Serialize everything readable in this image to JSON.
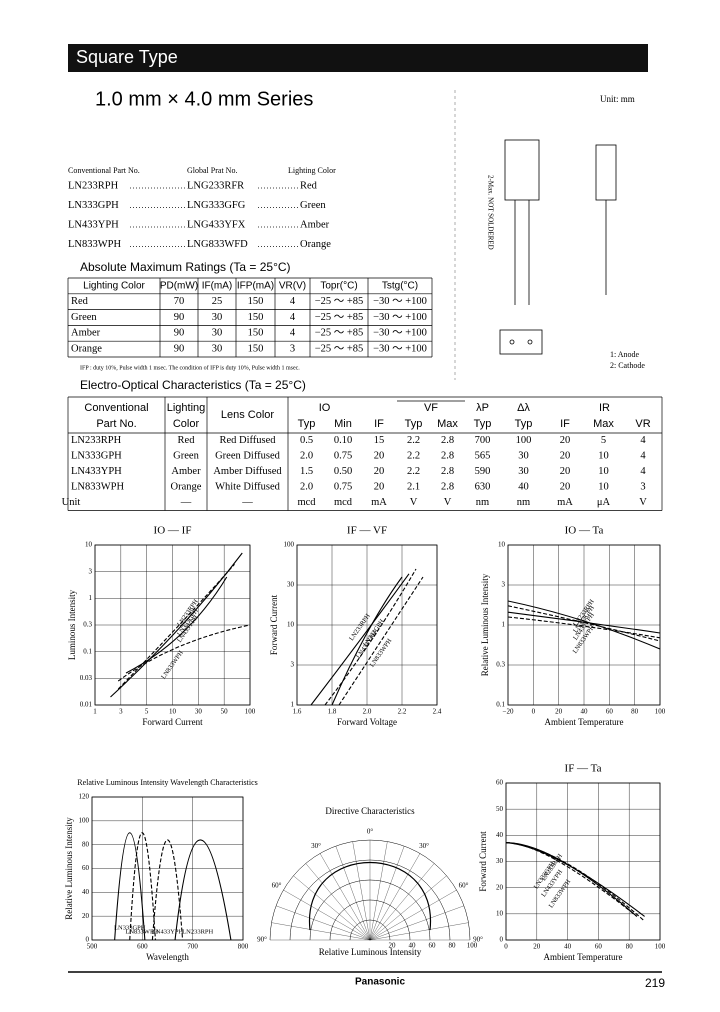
{
  "header": {
    "title": "Square Type"
  },
  "series_title": "1.0 mm × 4.0 mm Series",
  "drawing": {
    "unit": "Unit: mm",
    "not_soldered": "2-Max. NOT SOLDERED",
    "pin1": "1: Anode",
    "pin2": "2: Cathode"
  },
  "parts": {
    "headers": [
      "Conventional Part No.",
      "Global Prat No.",
      "Lighting Color"
    ],
    "rows": [
      [
        "LN233RPH",
        "LNG233RFR",
        "Red"
      ],
      [
        "LN333GPH",
        "LNG333GFG",
        "Green"
      ],
      [
        "LN433YPH",
        "LNG433YFX",
        "Amber"
      ],
      [
        "LN833WPH",
        "LNG833WFD",
        "Orange"
      ]
    ]
  },
  "abs_max": {
    "title": "Absolute Maximum Ratings (Ta = 25°C)",
    "headers": [
      "Lighting Color",
      "PD(mW)",
      "IF(mA)",
      "IFP(mA)",
      "VR(V)",
      "Topr(°C)",
      "Tstg(°C)"
    ],
    "rows": [
      [
        "Red",
        "70",
        "25",
        "150",
        "4",
        "−25 ～ +85",
        "−30 ～ +100"
      ],
      [
        "Green",
        "90",
        "30",
        "150",
        "4",
        "−25 ～ +85",
        "−30 ～ +100"
      ],
      [
        "Amber",
        "90",
        "30",
        "150",
        "4",
        "−25 ～ +85",
        "−30 ～ +100"
      ],
      [
        "Orange",
        "90",
        "30",
        "150",
        "3",
        "−25 ～ +85",
        "−30 ～ +100"
      ]
    ],
    "note": "IFP : duty 10%, Pulse width 1 msec. The condition of IFP is duty 10%, Pulse width 1 msec."
  },
  "electro": {
    "title": "Electro-Optical Characteristics (Ta = 25°C)",
    "header1": [
      "Conventional",
      "Lighting",
      "Lens Color",
      "IO",
      "VF",
      "λP",
      "Δλ",
      "IR"
    ],
    "header2": [
      "Part No.",
      "Color",
      "Typ",
      "Min",
      "IF",
      "Typ",
      "Max",
      "Typ",
      "Typ",
      "IF",
      "Max",
      "VR"
    ],
    "rows": [
      [
        "LN233RPH",
        "Red",
        "Red Diffused",
        "0.5",
        "0.10",
        "15",
        "2.2",
        "2.8",
        "700",
        "100",
        "20",
        "5",
        "4"
      ],
      [
        "LN333GPH",
        "Green",
        "Green Diffused",
        "2.0",
        "0.75",
        "20",
        "2.2",
        "2.8",
        "565",
        "30",
        "20",
        "10",
        "4"
      ],
      [
        "LN433YPH",
        "Amber",
        "Amber Diffused",
        "1.5",
        "0.50",
        "20",
        "2.2",
        "2.8",
        "590",
        "30",
        "20",
        "10",
        "4"
      ],
      [
        "LN833WPH",
        "Orange",
        "White Diffused",
        "2.0",
        "0.75",
        "20",
        "2.1",
        "2.8",
        "630",
        "40",
        "20",
        "10",
        "3"
      ],
      [
        "Unit",
        "—",
        "—",
        "mcd",
        "mcd",
        "mA",
        "V",
        "V",
        "nm",
        "nm",
        "mA",
        "μA",
        "V"
      ]
    ]
  },
  "charts": [
    {
      "title": "IO — IF",
      "xlabel": "Forward Current",
      "ylabel": "Luminous Intensity",
      "xticks": [
        "1",
        "3",
        "5",
        "10",
        "30",
        "50",
        "100"
      ],
      "yticks": [
        "0.01",
        "0.03",
        "0.1",
        "0.3",
        "1",
        "3",
        "10"
      ],
      "curves": [
        "LN233RPH",
        "LN333GPH",
        "LN433YPH",
        "LN833WPH"
      ]
    },
    {
      "title": "IF — VF",
      "xlabel": "Forward Voltage",
      "ylabel": "Forward Current",
      "xticks": [
        "1.6",
        "1.8",
        "2.0",
        "2.2",
        "2.4"
      ],
      "yticks": [
        "1",
        "3",
        "10",
        "30",
        "100"
      ],
      "curves": [
        "LN233RPH",
        "LN333GPH",
        "LN433YPH",
        "LN833WPH"
      ]
    },
    {
      "title": "IO — Ta",
      "xlabel": "Ambient Temperature",
      "ylabel": "Relative Luminous Intensity",
      "xticks": [
        "−20",
        "0",
        "20",
        "40",
        "60",
        "80",
        "100"
      ],
      "yticks": [
        "0.1",
        "0.3",
        "1",
        "3",
        "10"
      ],
      "curves": [
        "LN233RPH",
        "LN333GPH",
        "LN433YPH",
        "LN833WPH"
      ]
    },
    {
      "title": "Relative Luminous Intensity Wavelength Characteristics",
      "xlabel": "Wavelength",
      "ylabel": "Relative Luminous Intensity",
      "xticks": [
        "500",
        "600",
        "700",
        "800"
      ],
      "yticks": [
        "0",
        "20",
        "40",
        "60",
        "80",
        "100",
        "120"
      ],
      "curves": [
        "LN333GPH",
        "LN833WPH",
        "LN233RPH",
        "LN433YPH"
      ]
    },
    {
      "title": "Directive Characteristics",
      "xlabel": "Relative Luminous Intensity",
      "angles": [
        "90°",
        "60°",
        "30°",
        "0°",
        "30°",
        "60°",
        "90°"
      ],
      "radii": [
        "20",
        "40",
        "60",
        "80",
        "100"
      ]
    },
    {
      "title": "IF — Ta",
      "xlabel": "Ambient Temperature",
      "ylabel": "Forward Current",
      "xticks": [
        "0",
        "20",
        "40",
        "60",
        "80",
        "100"
      ],
      "yticks": [
        "0",
        "10",
        "20",
        "30",
        "40",
        "50",
        "60"
      ],
      "curves": [
        "LN233RPH",
        "LN333GPH",
        "LN433YPH",
        "LN833WPH"
      ]
    }
  ],
  "footer": {
    "brand": "Panasonic",
    "page": "219"
  }
}
